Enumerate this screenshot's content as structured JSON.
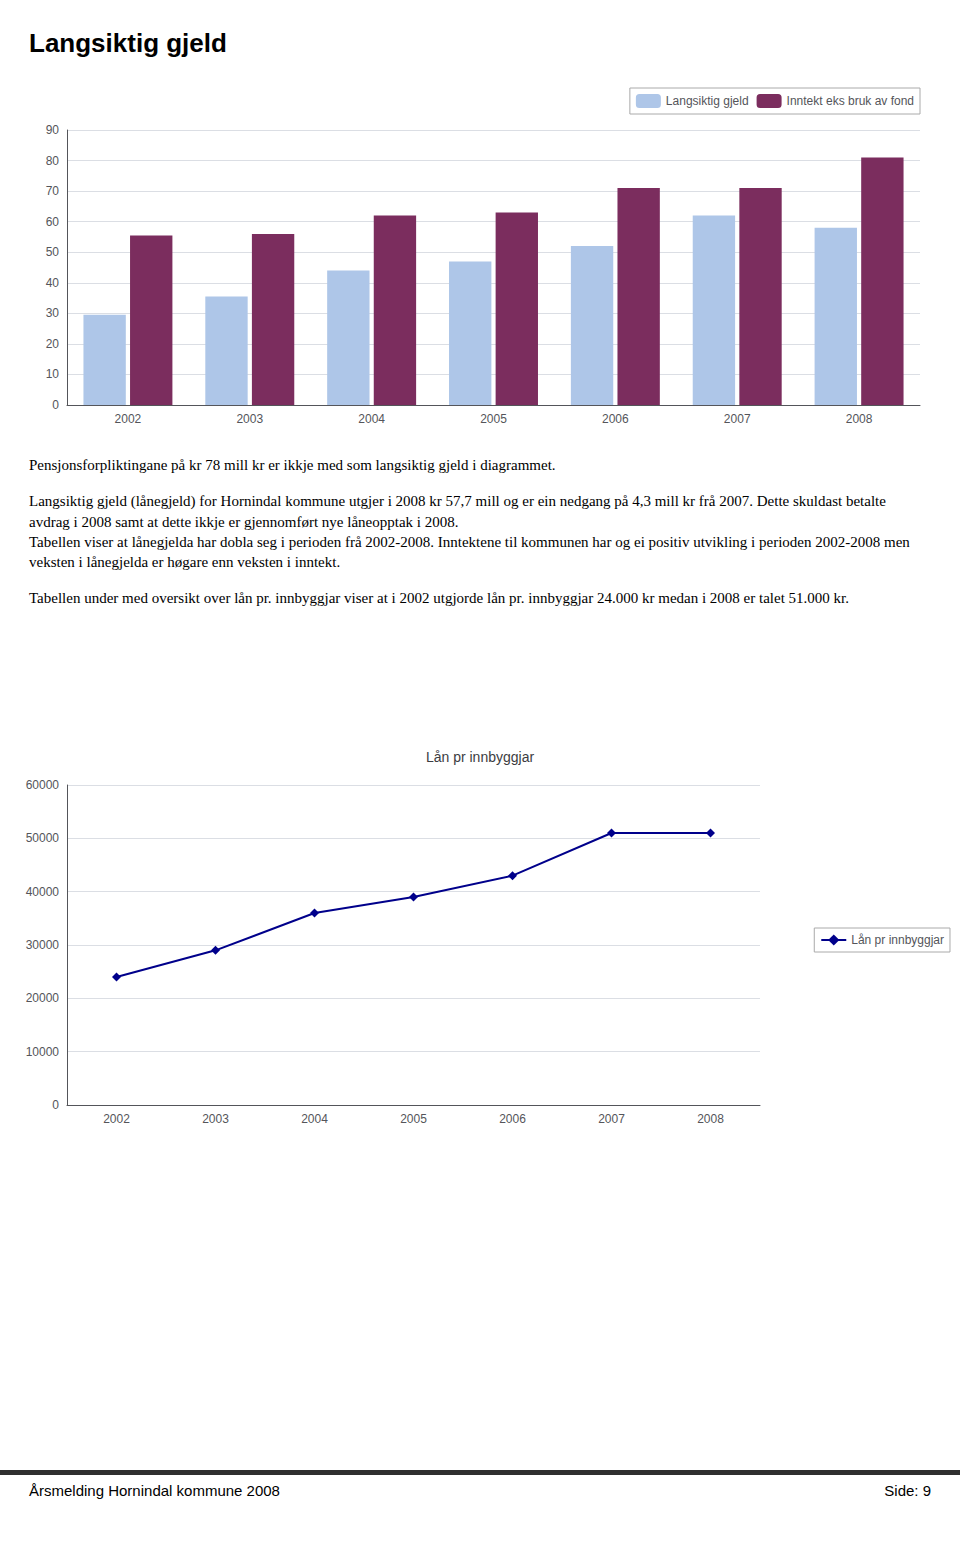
{
  "chart_data": [
    {
      "type": "bar",
      "title": "Langsiktig gjeld",
      "categories": [
        "2002",
        "2003",
        "2004",
        "2005",
        "2006",
        "2007",
        "2008"
      ],
      "series": [
        {
          "name": "Langsiktig gjeld",
          "color": "#aec6e8",
          "values": [
            29.5,
            35.5,
            44,
            47,
            52,
            62,
            58
          ]
        },
        {
          "name": "Inntekt eks bruk av fond",
          "color": "#7b2d5e",
          "values": [
            55.5,
            56,
            62,
            63,
            71,
            71,
            81
          ]
        }
      ],
      "ylim": [
        0,
        90
      ],
      "yticks": [
        0,
        10,
        20,
        30,
        40,
        50,
        60,
        70,
        80,
        90
      ],
      "grid": true,
      "legend": "upper right",
      "annotations": [
        "Pensjonsforpliktingane på kr 78 mill kr er ikkje med som langsiktig gjeld i diagrammet.",
        "Langsiktig gjeld (lånegjeld) for Hornindal kommune utgjer i 2008 kr 57,7 mill og er ein nedgang på 4,3 mill kr frå 2007. Dette skuldast betalte avdrag i 2008 samt at dette ikkje er gjennomført nye låneopptak i 2008.\nTabellen viser at lånegjelda har dobla seg i perioden frå 2002-2008. Inntektene til kommunen har og ei positiv utvikling i perioden 2002-2008 men veksten i lånegjelda er høgare enn veksten i inntekt.",
        "Tabellen under med oversikt over lån pr. innbyggjar viser at i 2002 utgjorde lån pr. innbyggjar 24.000 kr medan i 2008 er talet 51.000 kr."
      ]
    },
    {
      "type": "line",
      "title": "Lån pr innbyggjar",
      "categories": [
        "2002",
        "2003",
        "2004",
        "2005",
        "2006",
        "2007",
        "2008"
      ],
      "series": [
        {
          "name": "Lån pr innbyggjar",
          "color": "#00008b",
          "marker": "diamond",
          "values": [
            24000,
            29000,
            36000,
            39000,
            43000,
            51000,
            51000
          ]
        }
      ],
      "ylim": [
        0,
        60000
      ],
      "yticks": [
        0,
        10000,
        20000,
        30000,
        40000,
        50000,
        60000
      ],
      "grid": true,
      "legend": "right",
      "annotations": [
        "Årsmelding Hornindal kommune 2008",
        "Side: 9"
      ]
    }
  ]
}
